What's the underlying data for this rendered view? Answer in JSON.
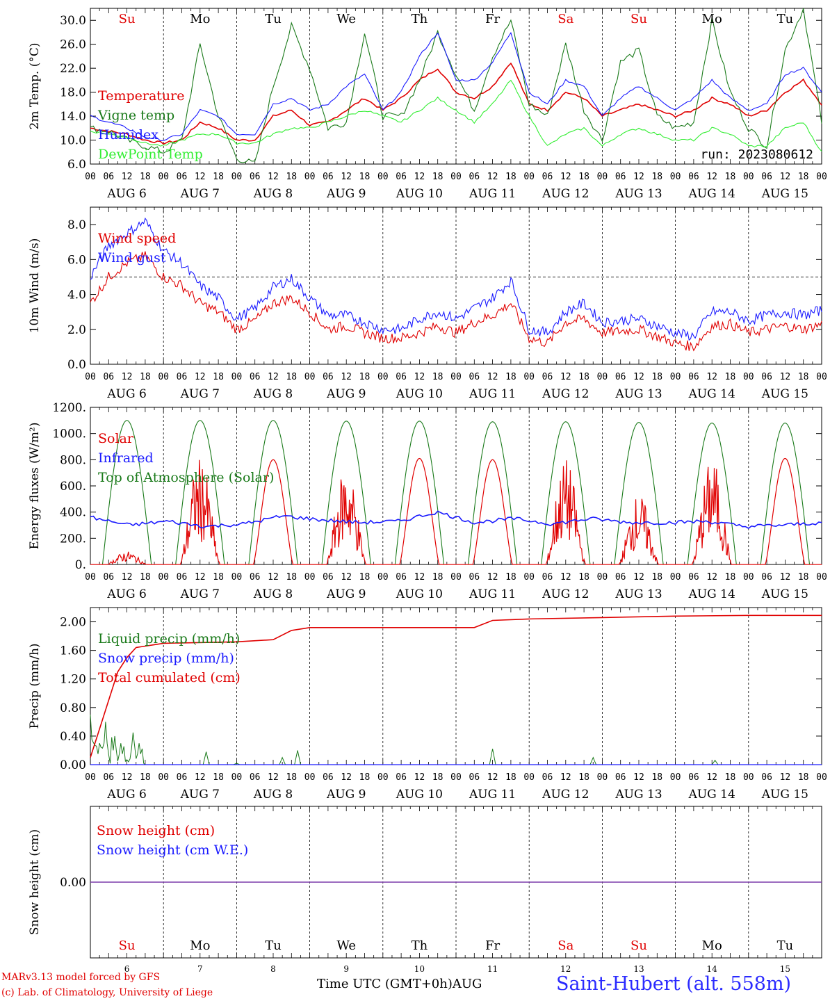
{
  "run_label": "run: 2023080612",
  "day_abbrevs": [
    "Su",
    "Mo",
    "Tu",
    "We",
    "Th",
    "Fr",
    "Sa",
    "Su",
    "Mo",
    "Tu"
  ],
  "weekend_days": [
    0,
    6,
    7
  ],
  "day_dates": [
    "AUG  6",
    "AUG  7",
    "AUG  8",
    "AUG  9",
    "AUG 10",
    "AUG 11",
    "AUG 12",
    "AUG 13",
    "AUG 14",
    "AUG 15"
  ],
  "day_numbers": [
    "6",
    "7",
    "8",
    "9",
    "10",
    "11",
    "12",
    "13",
    "14",
    "15"
  ],
  "hour_ticks": [
    "00",
    "06",
    "12",
    "18"
  ],
  "hour_end": "00",
  "footer": {
    "model": "MARv3.13 model forced by GFS",
    "lab": "(c) Lab. of Climatology, University of Liege",
    "xaxis_title": "Time UTC (GMT+0h)AUG",
    "station": "Saint-Hubert (alt. 558m)"
  },
  "colors": {
    "red": "#e00000",
    "darkgreen": "#1a7a1a",
    "blue": "#1a1aff",
    "lightgreen": "#33ee33",
    "purple": "#7a3aaa"
  },
  "chart_data": [
    {
      "type": "line",
      "ylabel": "2m Temp. (°C)",
      "yticks": [
        "6.0",
        "10.0",
        "14.0",
        "18.0",
        "22.0",
        "26.0",
        "30.0"
      ],
      "ylim": [
        6,
        32
      ],
      "x_hours": [
        0,
        6,
        12,
        18,
        24,
        30,
        36,
        42,
        48,
        54,
        60,
        66,
        72,
        78,
        84,
        90,
        96,
        102,
        108,
        114,
        120,
        126,
        132,
        138,
        144,
        150,
        156,
        162,
        168,
        174,
        180,
        186,
        192,
        198,
        204,
        210,
        216,
        222,
        228,
        234,
        240
      ],
      "series": [
        {
          "name": "Temperature",
          "color": "red",
          "values": [
            12,
            11.5,
            11,
            10,
            9.5,
            10,
            13,
            12,
            10,
            10,
            14,
            15,
            12.5,
            13,
            15,
            17,
            15,
            17,
            20,
            22,
            18,
            17,
            19,
            23,
            16,
            15,
            18,
            17,
            14,
            15,
            16,
            15,
            14,
            15,
            17,
            16,
            14,
            15,
            18,
            20,
            16
          ]
        },
        {
          "name": "Vigne temp",
          "color": "darkgreen",
          "values": [
            12,
            11.5,
            10,
            9,
            8,
            10,
            26,
            14,
            7,
            6,
            19,
            29,
            22,
            12,
            13,
            28,
            14,
            14,
            20,
            28,
            21,
            15,
            24,
            30,
            16,
            14,
            26,
            15,
            10,
            23,
            25,
            14,
            12,
            13,
            30,
            18,
            12,
            9,
            25,
            32,
            13
          ]
        },
        {
          "name": "Humidex",
          "color": "blue",
          "values": [
            14,
            13,
            12,
            10.5,
            10,
            11,
            15,
            14,
            11,
            11,
            16,
            17,
            15,
            16,
            19,
            21,
            15,
            18,
            24,
            28,
            20,
            20,
            23,
            28,
            18,
            16,
            20,
            19,
            14,
            17,
            19,
            17,
            15,
            17,
            20,
            17,
            15,
            16,
            21,
            22,
            18
          ]
        },
        {
          "name": "DewPoint Temp",
          "color": "lightgreen",
          "values": [
            11.5,
            11,
            10.5,
            9.5,
            9,
            10,
            11,
            11,
            9.5,
            9.5,
            11,
            12,
            12,
            13,
            14,
            15,
            14,
            13,
            15,
            17,
            15,
            13,
            16,
            20,
            14,
            9,
            11,
            12,
            9,
            11,
            12,
            11,
            10,
            10,
            12,
            11,
            9,
            9,
            12,
            13,
            8
          ]
        }
      ],
      "annotation": "run: 2023080612"
    },
    {
      "type": "line",
      "ylabel": "10m Wind (m/s)",
      "yticks": [
        "0.0",
        "2.0",
        "4.0",
        "6.0",
        "8.0"
      ],
      "ylim": [
        0,
        9
      ],
      "reference_line": 5,
      "x_hours": [
        0,
        6,
        12,
        18,
        24,
        30,
        36,
        42,
        48,
        54,
        60,
        66,
        72,
        78,
        84,
        90,
        96,
        102,
        108,
        114,
        120,
        126,
        132,
        138,
        144,
        150,
        156,
        162,
        168,
        174,
        180,
        186,
        192,
        198,
        204,
        210,
        216,
        222,
        228,
        234,
        240
      ],
      "series": [
        {
          "name": "Wind speed",
          "color": "red",
          "values": [
            3.5,
            5.0,
            5.8,
            6.2,
            5.0,
            4.5,
            3.5,
            3.0,
            2.0,
            2.5,
            3.5,
            3.8,
            3.0,
            2.0,
            2.2,
            1.8,
            1.5,
            1.5,
            1.8,
            2.2,
            1.8,
            2.4,
            2.8,
            3.5,
            1.5,
            1.2,
            2.4,
            2.6,
            1.8,
            1.9,
            2.0,
            1.6,
            1.2,
            1.0,
            2.2,
            2.3,
            1.8,
            2.0,
            2.2,
            2.0,
            2.3
          ]
        },
        {
          "name": "Wind gust",
          "color": "blue",
          "values": [
            5.0,
            6.8,
            7.5,
            8.2,
            6.5,
            5.8,
            4.5,
            3.8,
            2.6,
            3.2,
            4.4,
            4.9,
            3.8,
            2.8,
            2.8,
            2.4,
            2.0,
            2.0,
            2.6,
            3.0,
            2.6,
            3.2,
            3.8,
            4.8,
            2.0,
            1.8,
            3.0,
            3.5,
            2.4,
            2.5,
            2.6,
            2.2,
            1.8,
            1.6,
            3.0,
            3.0,
            2.5,
            2.8,
            3.0,
            2.8,
            3.1
          ]
        }
      ]
    },
    {
      "type": "line",
      "ylabel": "Energy fluxes (W/m²)",
      "yticks": [
        "0.",
        "200.",
        "400.",
        "600.",
        "800.",
        "1000.",
        "1200."
      ],
      "ylim": [
        0,
        1200
      ],
      "series": [
        {
          "name": "Solar",
          "color": "red",
          "daily_peak": [
            100,
            820,
            800,
            760,
            810,
            800,
            810,
            540,
            810,
            810
          ]
        },
        {
          "name": "Infrared",
          "color": "blue",
          "values_approx": [
            360,
            300,
            330,
            290,
            310,
            370,
            340,
            320,
            330,
            400,
            320,
            350,
            310,
            350,
            320,
            320,
            330,
            290,
            300,
            320
          ]
        },
        {
          "name": "Top of Atmosphere (Solar)",
          "color": "darkgreen",
          "daily_peak": [
            1100,
            1100,
            1100,
            1095,
            1095,
            1090,
            1090,
            1085,
            1080,
            1080
          ]
        }
      ],
      "sunrise_hour": 4,
      "sunset_hour": 20
    },
    {
      "type": "line",
      "ylabel": "Precip (mm/h)",
      "yticks": [
        "0.00",
        "0.40",
        "0.80",
        "1.20",
        "1.60",
        "2.00"
      ],
      "ylim": [
        0,
        2.2
      ],
      "x_hours": [
        0,
        3,
        6,
        9,
        12,
        15,
        18,
        21,
        24,
        48,
        60,
        66,
        72,
        96,
        120,
        126,
        132,
        144,
        168,
        192,
        216,
        240
      ],
      "series": [
        {
          "name": "Liquid precip (mm/h)",
          "color": "darkgreen",
          "spikes": [
            [
              0,
              0.7
            ],
            [
              3,
              0.3
            ],
            [
              5,
              0.6
            ],
            [
              8,
              0.4
            ],
            [
              10,
              0.3
            ],
            [
              14,
              0.45
            ],
            [
              16,
              0.3
            ],
            [
              38,
              0.18
            ],
            [
              48,
              0.02
            ],
            [
              63,
              0.1
            ],
            [
              68,
              0.2
            ],
            [
              132,
              0.22
            ],
            [
              165,
              0.1
            ],
            [
              205,
              0.06
            ]
          ]
        },
        {
          "name": "Snow precip (mm/h)",
          "color": "blue",
          "values": [
            0
          ]
        },
        {
          "name": "Total cumulated (cm)",
          "color": "red",
          "values": [
            0.1,
            0.5,
            0.9,
            1.3,
            1.5,
            1.64,
            1.66,
            1.68,
            1.7,
            1.72,
            1.75,
            1.88,
            1.92,
            1.92,
            1.92,
            1.92,
            2.02,
            2.04,
            2.06,
            2.08,
            2.09,
            2.09
          ]
        }
      ]
    },
    {
      "type": "line",
      "ylabel": "Snow height (cm)",
      "yticks": [
        "0.00"
      ],
      "ylim": [
        -1,
        1
      ],
      "series": [
        {
          "name": "Snow height (cm)",
          "color": "red",
          "values": [
            0,
            0
          ]
        },
        {
          "name": "Snow height (cm W.E.)",
          "color": "blue",
          "values": [
            0,
            0
          ]
        }
      ]
    }
  ]
}
